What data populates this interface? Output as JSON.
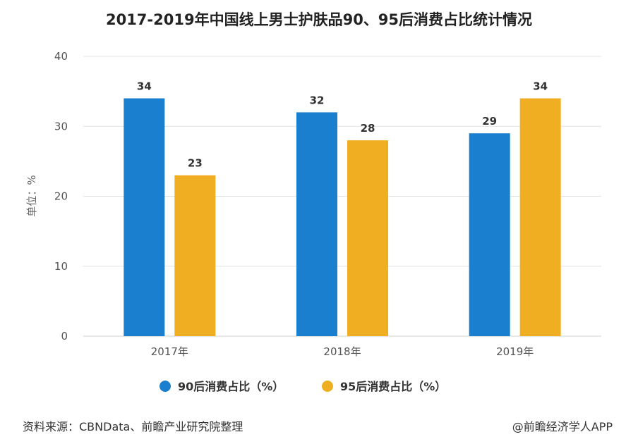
{
  "chart_data": {
    "type": "bar",
    "title": "2017-2019年中国线上男士护肤品90、95后消费占比统计情况",
    "ylabel": "单位：%",
    "xlabel": "",
    "ylim": [
      0,
      40
    ],
    "yticks": [
      0,
      10,
      20,
      30,
      40
    ],
    "categories": [
      "2017年",
      "2018年",
      "2019年"
    ],
    "series": [
      {
        "name": "90后消费占比（%）",
        "color": "#1a7fce",
        "values": [
          34,
          32,
          29
        ]
      },
      {
        "name": "95后消费占比（%）",
        "color": "#f0ae22",
        "values": [
          23,
          28,
          34
        ]
      }
    ],
    "grid": true,
    "legend_position": "bottom"
  },
  "footer": {
    "source": "资料来源：CBNData、前瞻产业研究院整理",
    "credit": "@前瞻经济学人APP"
  },
  "colors": {
    "grid": "#e2e2e2",
    "axis_text": "#555555",
    "label_text": "#333333"
  }
}
